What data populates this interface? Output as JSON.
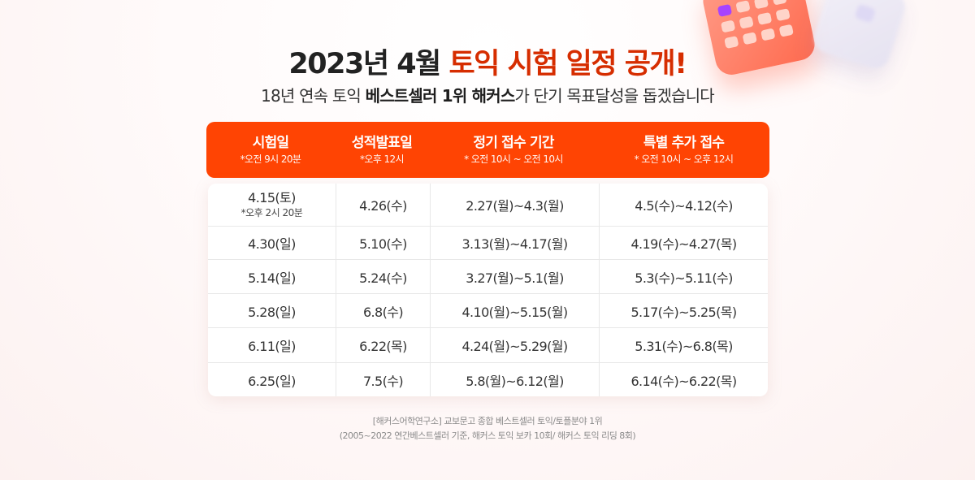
{
  "title": {
    "prefix": "2023년 4월 ",
    "accent": "토익 시험 일정 공개!"
  },
  "subtitle": {
    "part1": "18년 연속 토익 ",
    "bold": "베스트셀러 1위 해커스",
    "part2": "가 단기 목표달성을 돕겠습니다"
  },
  "table": {
    "headers": [
      {
        "label": "시험일",
        "note": "*오전 9시 20분"
      },
      {
        "label": "성적발표일",
        "note": "*오후 12시"
      },
      {
        "label": "정기 접수 기간",
        "note": "* 오전 10시 ~ 오전 10시"
      },
      {
        "label": "특별 추가 접수",
        "note": "* 오전 10시 ~ 오후 12시"
      }
    ],
    "rows": [
      {
        "exam_date": "4.15(토)",
        "exam_note": "*오후 2시 20분",
        "result_date": "4.26(수)",
        "regular_period": "2.27(월)~4.3(월)",
        "special_period": "4.5(수)~4.12(수)"
      },
      {
        "exam_date": "4.30(일)",
        "exam_note": "",
        "result_date": "5.10(수)",
        "regular_period": "3.13(월)~4.17(월)",
        "special_period": "4.19(수)~4.27(목)"
      },
      {
        "exam_date": "5.14(일)",
        "exam_note": "",
        "result_date": "5.24(수)",
        "regular_period": "3.27(월)~5.1(월)",
        "special_period": "5.3(수)~5.11(수)"
      },
      {
        "exam_date": "5.28(일)",
        "exam_note": "",
        "result_date": "6.8(수)",
        "regular_period": "4.10(월)~5.15(월)",
        "special_period": "5.17(수)~5.25(목)"
      },
      {
        "exam_date": "6.11(일)",
        "exam_note": "",
        "result_date": "6.22(목)",
        "regular_period": "4.24(월)~5.29(월)",
        "special_period": "5.31(수)~6.8(목)"
      },
      {
        "exam_date": "6.25(일)",
        "exam_note": "",
        "result_date": "7.5(수)",
        "regular_period": "5.8(월)~6.12(월)",
        "special_period": "6.14(수)~6.22(목)"
      }
    ]
  },
  "footnote": {
    "line1": "[해커스어학연구소] 교보문고 종합 베스트셀러 토익/토플분야 1위",
    "line2": "(2005~2022 연간베스트셀러 기준, 해커스 토익 보카 10회/ 해커스 토익 리딩 8회)"
  },
  "decorations": {
    "calendar_icon": "calendar-icon",
    "card_icon": "blurred-card-icon"
  },
  "colors": {
    "accent_title": "#d62d00",
    "header_bg": "#ff4403",
    "calendar_mark": "#a743ff"
  }
}
